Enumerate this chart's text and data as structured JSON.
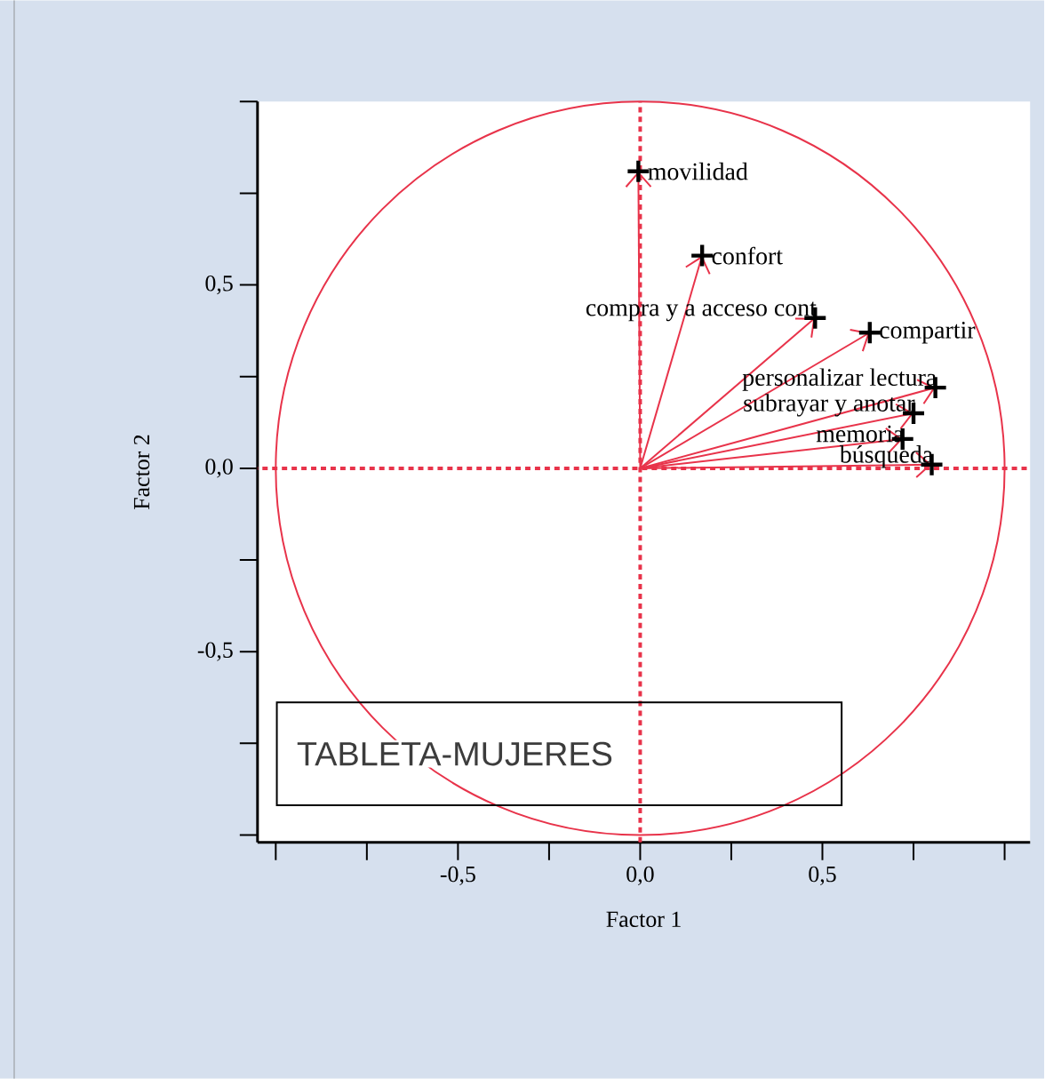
{
  "chart_data": {
    "type": "scatter",
    "xlabel": "Factor 1",
    "ylabel": "Factor 2",
    "xlim": [
      -1.05,
      1.07
    ],
    "ylim": [
      -1.02,
      1.0
    ],
    "xticks": [
      {
        "value": -1.0,
        "label": null
      },
      {
        "value": -0.75,
        "label": null
      },
      {
        "value": -0.5,
        "label": "-0,5"
      },
      {
        "value": -0.25,
        "label": null
      },
      {
        "value": 0.0,
        "label": "0,0"
      },
      {
        "value": 0.25,
        "label": null
      },
      {
        "value": 0.5,
        "label": "0,5"
      },
      {
        "value": 0.75,
        "label": null
      },
      {
        "value": 1.0,
        "label": null
      }
    ],
    "yticks": [
      {
        "value": -1.0,
        "label": null
      },
      {
        "value": -0.75,
        "label": null
      },
      {
        "value": -0.5,
        "label": "-0,5"
      },
      {
        "value": -0.25,
        "label": null
      },
      {
        "value": 0.0,
        "label": "0,0"
      },
      {
        "value": 0.25,
        "label": null
      },
      {
        "value": 0.5,
        "label": "0,5"
      },
      {
        "value": 0.75,
        "label": null
      },
      {
        "value": 1.0,
        "label": null
      }
    ],
    "marker": "cross",
    "grid": false,
    "series": [
      {
        "type": "scatter",
        "color": "#000000",
        "x": [
          -0.005,
          0.17,
          0.48,
          0.63,
          0.81,
          0.75,
          0.72,
          0.8
        ],
        "values": [
          0.81,
          0.58,
          0.41,
          0.37,
          0.22,
          0.15,
          0.08,
          0.01
        ]
      }
    ],
    "ref_lines": [
      {
        "axis": "x",
        "value": 0,
        "color": "#e8334a",
        "line_style": "dashed"
      },
      {
        "axis": "y",
        "value": 0,
        "color": "#e8334a",
        "line_style": "dashed"
      }
    ],
    "annotations": [
      {
        "text": "movilidad",
        "x": -0.005,
        "y": 0.81
      },
      {
        "text": "confort",
        "x": 0.17,
        "y": 0.58
      },
      {
        "text": "compra y a acceso cont",
        "x": 0.48,
        "y": 0.41
      },
      {
        "text": "compartir",
        "x": 0.63,
        "y": 0.37
      },
      {
        "text": "personalizar lectura",
        "x": 0.81,
        "y": 0.22
      },
      {
        "text": "subrayar y anotar",
        "x": 0.75,
        "y": 0.15
      },
      {
        "text": "memoria",
        "x": 0.72,
        "y": 0.08
      },
      {
        "text": "búsqueda",
        "x": 0.8,
        "y": 0.01
      },
      "TABLETA-MUJERES"
    ]
  }
}
